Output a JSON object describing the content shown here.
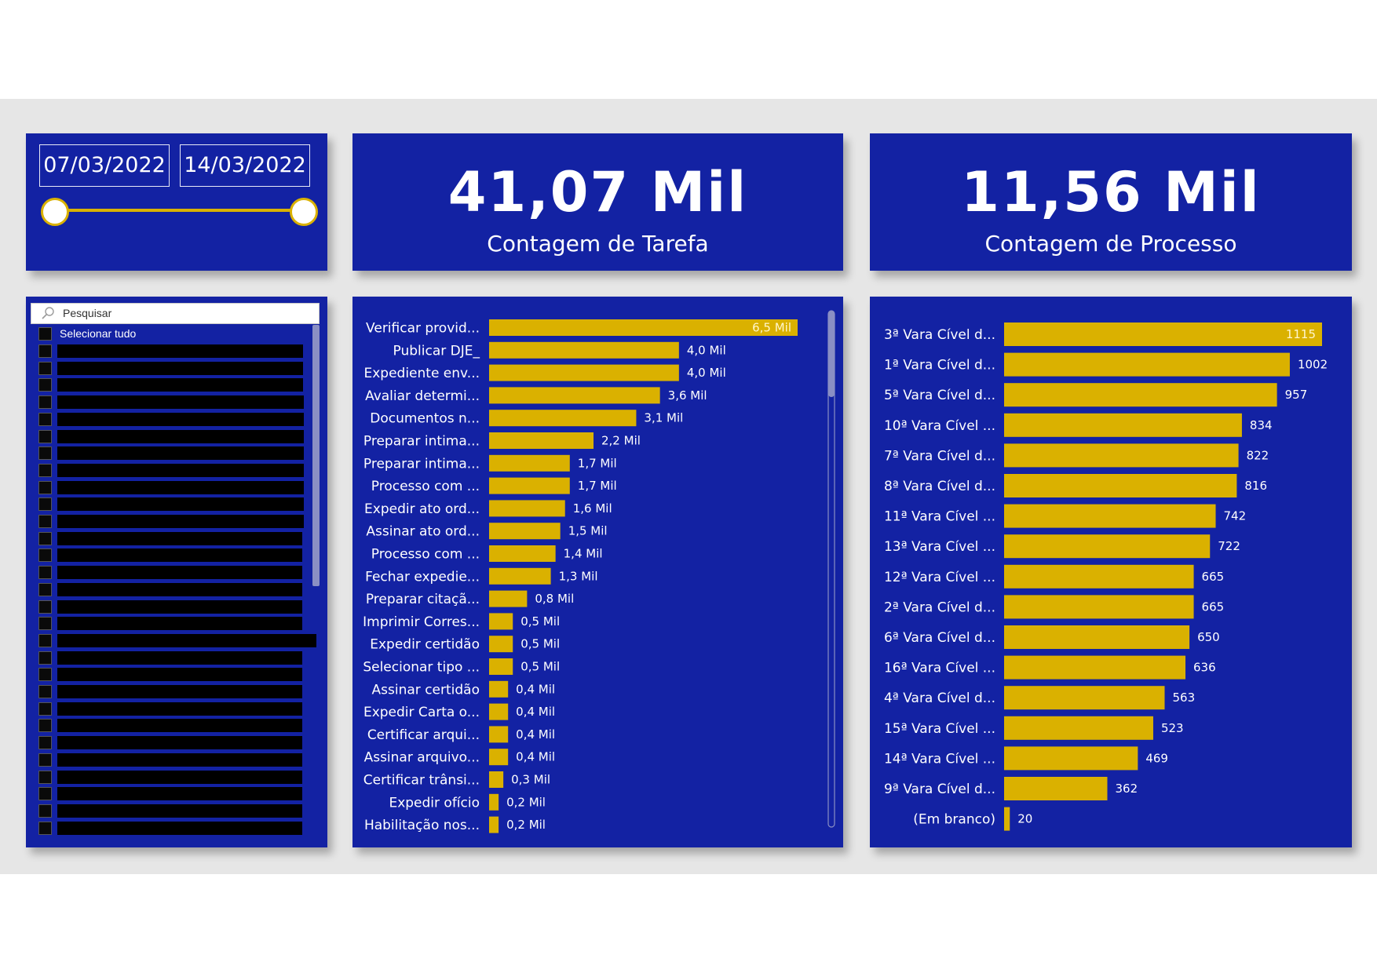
{
  "colors": {
    "card": "#1322a3",
    "bar": "#dab100",
    "text": "#ffffff",
    "background": "#e6e6e6"
  },
  "date_slicer": {
    "start": "07/03/2022",
    "end": "14/03/2022"
  },
  "kpis": [
    {
      "value": "41,07 Mil",
      "label": "Contagem de Tarefa"
    },
    {
      "value": "11,56 Mil",
      "label": "Contagem de Processo"
    }
  ],
  "list_slicer": {
    "search_placeholder": "Pesquisar",
    "select_all": "Selecionar tudo",
    "search_icon": "search-icon"
  },
  "chart_data": [
    {
      "type": "bar",
      "orientation": "horizontal",
      "categories": [
        "Verificar provid...",
        "Publicar DJE_",
        "Expediente env...",
        "Avaliar determi...",
        "Documentos n...",
        "Preparar intima...",
        "Preparar intima...",
        "Processo com ...",
        "Expedir ato ord...",
        "Assinar ato ord...",
        "Processo com ...",
        "Fechar expedie...",
        "Preparar citaçã...",
        "Imprimir Corres...",
        "Expedir certidão",
        "Selecionar tipo ...",
        "Assinar certidão",
        "Expedir Carta o...",
        "Certificar arqui...",
        "Assinar arquivo...",
        "Certificar trânsi...",
        "Expedir ofício",
        "Habilitação nos..."
      ],
      "values": [
        6.5,
        4.0,
        4.0,
        3.6,
        3.1,
        2.2,
        1.7,
        1.7,
        1.6,
        1.5,
        1.4,
        1.3,
        0.8,
        0.5,
        0.5,
        0.5,
        0.4,
        0.4,
        0.4,
        0.4,
        0.3,
        0.2,
        0.2
      ],
      "data_labels": [
        "6,5 Mil",
        "4,0 Mil",
        "4,0 Mil",
        "3,6 Mil",
        "3,1 Mil",
        "2,2 Mil",
        "1,7 Mil",
        "1,7 Mil",
        "1,6 Mil",
        "1,5 Mil",
        "1,4 Mil",
        "1,3 Mil",
        "0,8 Mil",
        "0,5 Mil",
        "0,5 Mil",
        "0,5 Mil",
        "0,4 Mil",
        "0,4 Mil",
        "0,4 Mil",
        "0,4 Mil",
        "0,3 Mil",
        "0,2 Mil",
        "0,2 Mil"
      ],
      "unit": "Mil",
      "xlim": [
        0,
        6.5
      ],
      "grid": false
    },
    {
      "type": "bar",
      "orientation": "horizontal",
      "categories": [
        "3ª Vara Cível d...",
        "1ª Vara Cível d...",
        "5ª Vara Cível d...",
        "10ª Vara Cível ...",
        "7ª Vara Cível d...",
        "8ª Vara Cível d...",
        "11ª Vara Cível ...",
        "13ª Vara Cível ...",
        "12ª Vara Cível ...",
        "2ª Vara Cível d...",
        "6ª Vara Cível d...",
        "16ª Vara Cível ...",
        "4ª Vara Cível d...",
        "15ª Vara Cível ...",
        "14ª Vara Cível ...",
        "9ª Vara Cível d...",
        "(Em branco)"
      ],
      "values": [
        1115,
        1002,
        957,
        834,
        822,
        816,
        742,
        722,
        665,
        665,
        650,
        636,
        563,
        523,
        469,
        362,
        20
      ],
      "data_labels": [
        "1115",
        "1002",
        "957",
        "834",
        "822",
        "816",
        "742",
        "722",
        "665",
        "665",
        "650",
        "636",
        "563",
        "523",
        "469",
        "362",
        "20"
      ],
      "xlim": [
        0,
        1115
      ],
      "grid": false
    }
  ]
}
